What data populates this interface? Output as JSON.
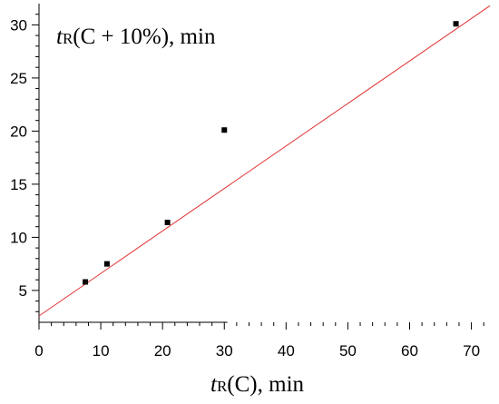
{
  "chart_data": {
    "type": "scatter",
    "xlabel": {
      "base": "t",
      "sub": "R",
      "rest": "(C), min"
    },
    "ylabel": {
      "base": "t",
      "sub": "R",
      "rest": "(C + 10%), min"
    },
    "xlim": [
      0,
      73
    ],
    "ylim": [
      2,
      32
    ],
    "x_ticks": [
      0,
      10,
      20,
      30,
      40,
      50,
      60,
      70
    ],
    "y_ticks": [
      5,
      10,
      15,
      20,
      25,
      30
    ],
    "points": [
      {
        "x": 7.5,
        "y": 5.8
      },
      {
        "x": 11.0,
        "y": 7.5
      },
      {
        "x": 20.8,
        "y": 11.4
      },
      {
        "x": 30.0,
        "y": 20.1
      },
      {
        "x": 67.5,
        "y": 30.1
      }
    ],
    "fit_line": {
      "slope": 0.4,
      "intercept": 2.6
    },
    "colors": {
      "points": "#000000",
      "fit_line": "#e03030",
      "axes": "#000000"
    }
  }
}
